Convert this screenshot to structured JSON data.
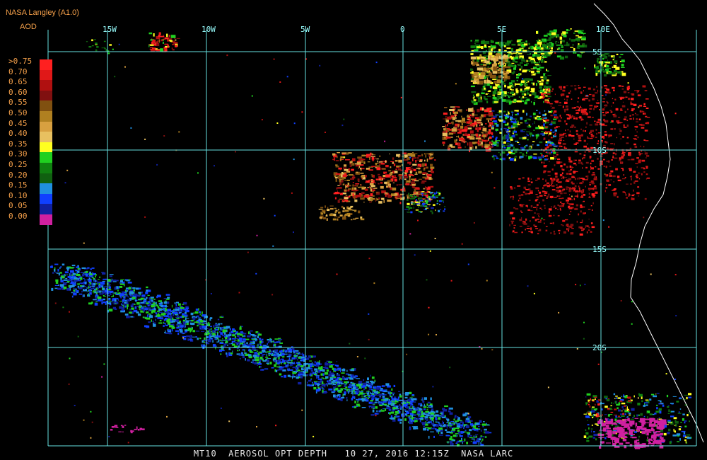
{
  "header": {
    "source": "NASA Langley (A1.0)",
    "variable": "AOD"
  },
  "legend": {
    "labels": [
      ">0.75",
      "0.70",
      "0.65",
      "0.60",
      "0.55",
      "0.50",
      "0.45",
      "0.40",
      "0.35",
      "0.30",
      "0.25",
      "0.20",
      "0.15",
      "0.10",
      "0.05",
      "0.00"
    ],
    "colors": [
      "#ff2020",
      "#e01818",
      "#b01010",
      "#801010",
      "#805010",
      "#b08020",
      "#d8a040",
      "#e8c060",
      "#ffff20",
      "#20d020",
      "#108010",
      "#106010",
      "#2090e0",
      "#1040ff",
      "#1020a0",
      "#d020a0"
    ]
  },
  "map": {
    "longitude_labels": [
      "15W",
      "10W",
      "5W",
      "0",
      "5E",
      "10E"
    ],
    "latitude_labels": [
      "5S",
      "10S",
      "15S",
      "20S"
    ],
    "grid_color": "#66e0e0",
    "coastline_color": "#ffffff"
  },
  "footer": {
    "text": "MT10  AEROSOL OPT DEPTH   10 27, 2016 12:15Z  NASA LARC"
  }
}
